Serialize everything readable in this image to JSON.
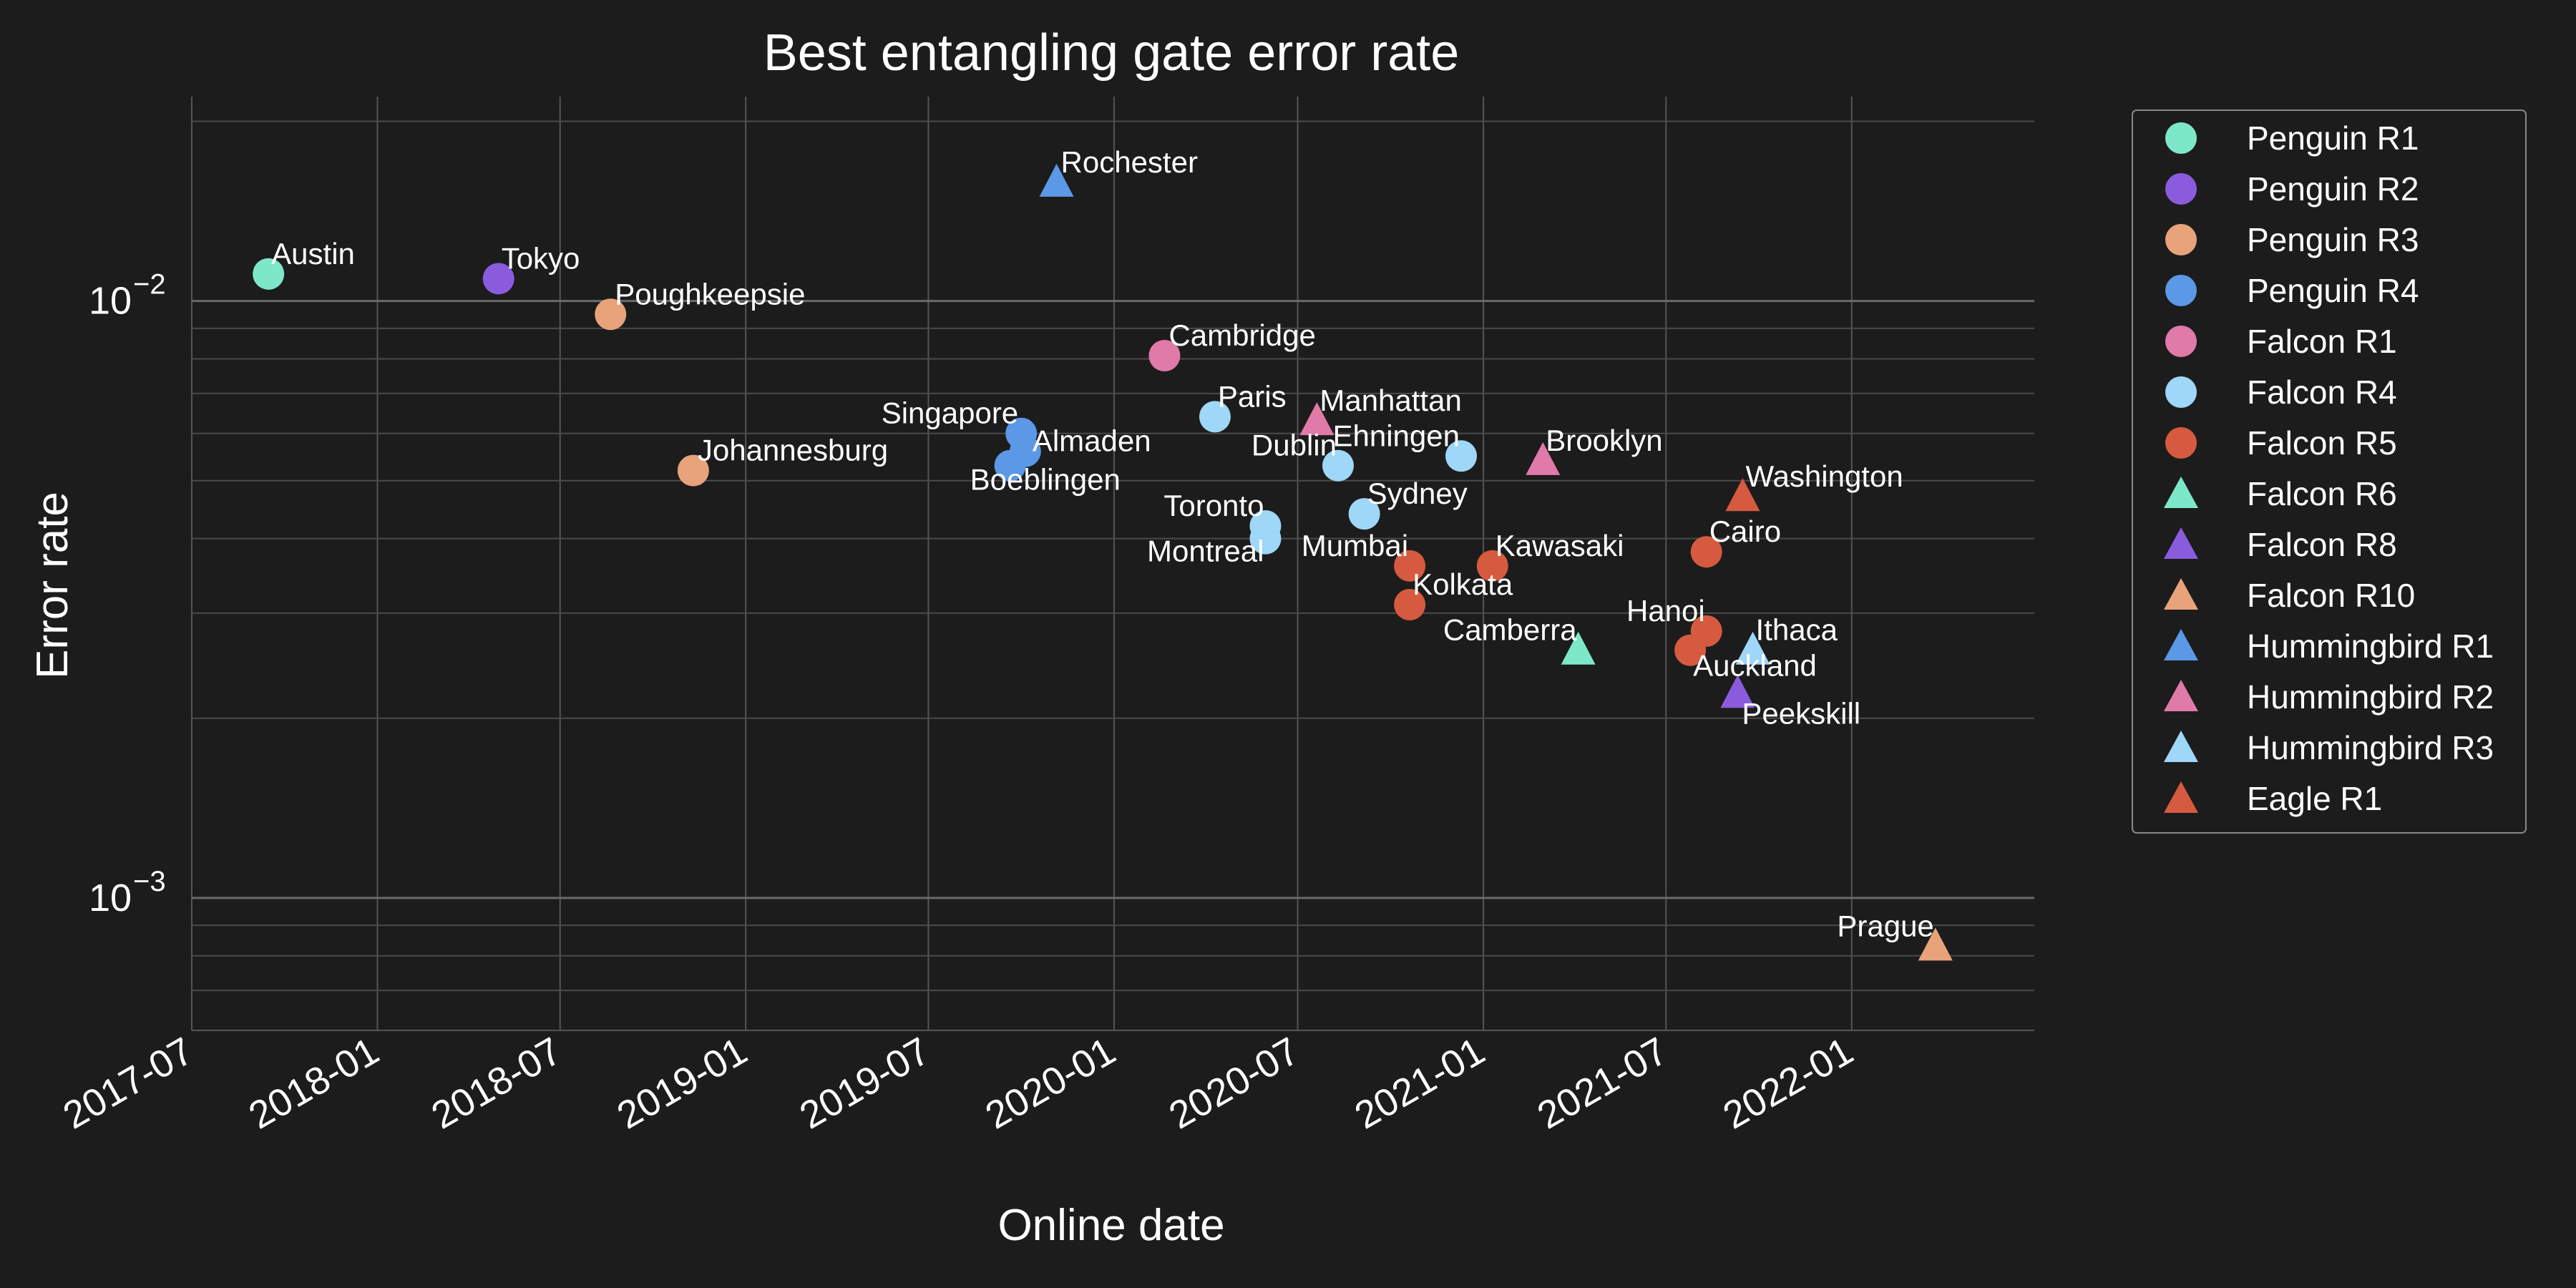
{
  "chart_data": {
    "type": "scatter",
    "title": "Best entangling gate error rate",
    "xlabel": "Online date",
    "ylabel": "Error rate",
    "x_ticks": [
      "2017-07",
      "2018-01",
      "2018-07",
      "2019-01",
      "2019-07",
      "2020-01",
      "2020-07",
      "2021-01",
      "2021-07",
      "2022-01"
    ],
    "y_scale": "log",
    "y_ticks": [
      {
        "base": "10",
        "exp": "−3",
        "value": 0.001
      },
      {
        "base": "10",
        "exp": "−2",
        "value": 0.01
      }
    ],
    "xlim": [
      "2017-07-01",
      "2022-07-01"
    ],
    "ylim": [
      0.0006,
      0.022
    ],
    "grid": true,
    "legend_position": "outside-right",
    "series": [
      {
        "name": "Penguin R1",
        "marker": "circle",
        "color": "#7de8c8",
        "points": [
          {
            "x": "2017-09-15",
            "y": 0.0111,
            "label": "Austin"
          }
        ]
      },
      {
        "name": "Penguin R2",
        "marker": "circle",
        "color": "#8b5bde",
        "points": [
          {
            "x": "2018-05-01",
            "y": 0.0109,
            "label": "Tokyo"
          }
        ]
      },
      {
        "name": "Penguin R3",
        "marker": "circle",
        "color": "#e8a37a",
        "points": [
          {
            "x": "2018-08-20",
            "y": 0.0095,
            "label": "Poughkeepsie"
          },
          {
            "x": "2018-11-10",
            "y": 0.0052,
            "label": "Johannesburg"
          }
        ]
      },
      {
        "name": "Penguin R4",
        "marker": "circle",
        "color": "#5b98e6",
        "points": [
          {
            "x": "2019-10-01",
            "y": 0.006,
            "label": "Singapore"
          },
          {
            "x": "2019-10-05",
            "y": 0.0056,
            "label": "Almaden"
          },
          {
            "x": "2019-09-20",
            "y": 0.0053,
            "label": "Boeblingen"
          }
        ]
      },
      {
        "name": "Falcon R1",
        "marker": "circle",
        "color": "#e07aa8",
        "points": [
          {
            "x": "2020-02-20",
            "y": 0.0081,
            "label": "Cambridge"
          }
        ]
      },
      {
        "name": "Falcon R4",
        "marker": "circle",
        "color": "#9ed7f7",
        "points": [
          {
            "x": "2020-04-10",
            "y": 0.0064,
            "label": "Paris"
          },
          {
            "x": "2020-05-30",
            "y": 0.0042,
            "label": "Toronto"
          },
          {
            "x": "2020-05-30",
            "y": 0.004,
            "label": "Montreal"
          },
          {
            "x": "2020-08-10",
            "y": 0.0053,
            "label": "Dublin"
          },
          {
            "x": "2020-12-10",
            "y": 0.0055,
            "label": "Ehningen"
          },
          {
            "x": "2020-09-05",
            "y": 0.0044,
            "label": "Sydney"
          }
        ]
      },
      {
        "name": "Falcon R5",
        "marker": "circle",
        "color": "#d65a3f",
        "points": [
          {
            "x": "2020-10-20",
            "y": 0.0036,
            "label": "Mumbai"
          },
          {
            "x": "2020-10-20",
            "y": 0.0031,
            "label": "Kolkata"
          },
          {
            "x": "2021-01-10",
            "y": 0.0036,
            "label": "Kawasaki"
          },
          {
            "x": "2021-08-10",
            "y": 0.0038,
            "label": "Cairo"
          },
          {
            "x": "2021-08-10",
            "y": 0.0028,
            "label": "Hanoi"
          },
          {
            "x": "2021-07-25",
            "y": 0.0026,
            "label": "Auckland"
          }
        ]
      },
      {
        "name": "Falcon R6",
        "marker": "triangle",
        "color": "#7de8c8",
        "points": [
          {
            "x": "2021-04-05",
            "y": 0.0026,
            "label": "Camberra"
          }
        ]
      },
      {
        "name": "Falcon R8",
        "marker": "triangle",
        "color": "#8b5bde",
        "points": [
          {
            "x": "2021-09-10",
            "y": 0.0022,
            "label": "Peekskill"
          }
        ]
      },
      {
        "name": "Falcon R10",
        "marker": "triangle",
        "color": "#e8a37a",
        "points": [
          {
            "x": "2022-03-25",
            "y": 0.00083,
            "label": "Prague"
          }
        ]
      },
      {
        "name": "Hummingbird R1",
        "marker": "triangle",
        "color": "#5b98e6",
        "points": [
          {
            "x": "2019-11-05",
            "y": 0.0158,
            "label": "Rochester"
          }
        ]
      },
      {
        "name": "Hummingbird R2",
        "marker": "triangle",
        "color": "#e07aa8",
        "points": [
          {
            "x": "2020-07-20",
            "y": 0.0063,
            "label": "Manhattan"
          },
          {
            "x": "2021-03-01",
            "y": 0.0054,
            "label": "Brooklyn"
          }
        ]
      },
      {
        "name": "Hummingbird R3",
        "marker": "triangle",
        "color": "#9ed7f7",
        "points": [
          {
            "x": "2021-09-25",
            "y": 0.0026,
            "label": "Ithaca"
          }
        ]
      },
      {
        "name": "Eagle R1",
        "marker": "triangle",
        "color": "#d65a3f",
        "points": [
          {
            "x": "2021-09-15",
            "y": 0.0047,
            "label": "Washington"
          }
        ]
      }
    ]
  }
}
